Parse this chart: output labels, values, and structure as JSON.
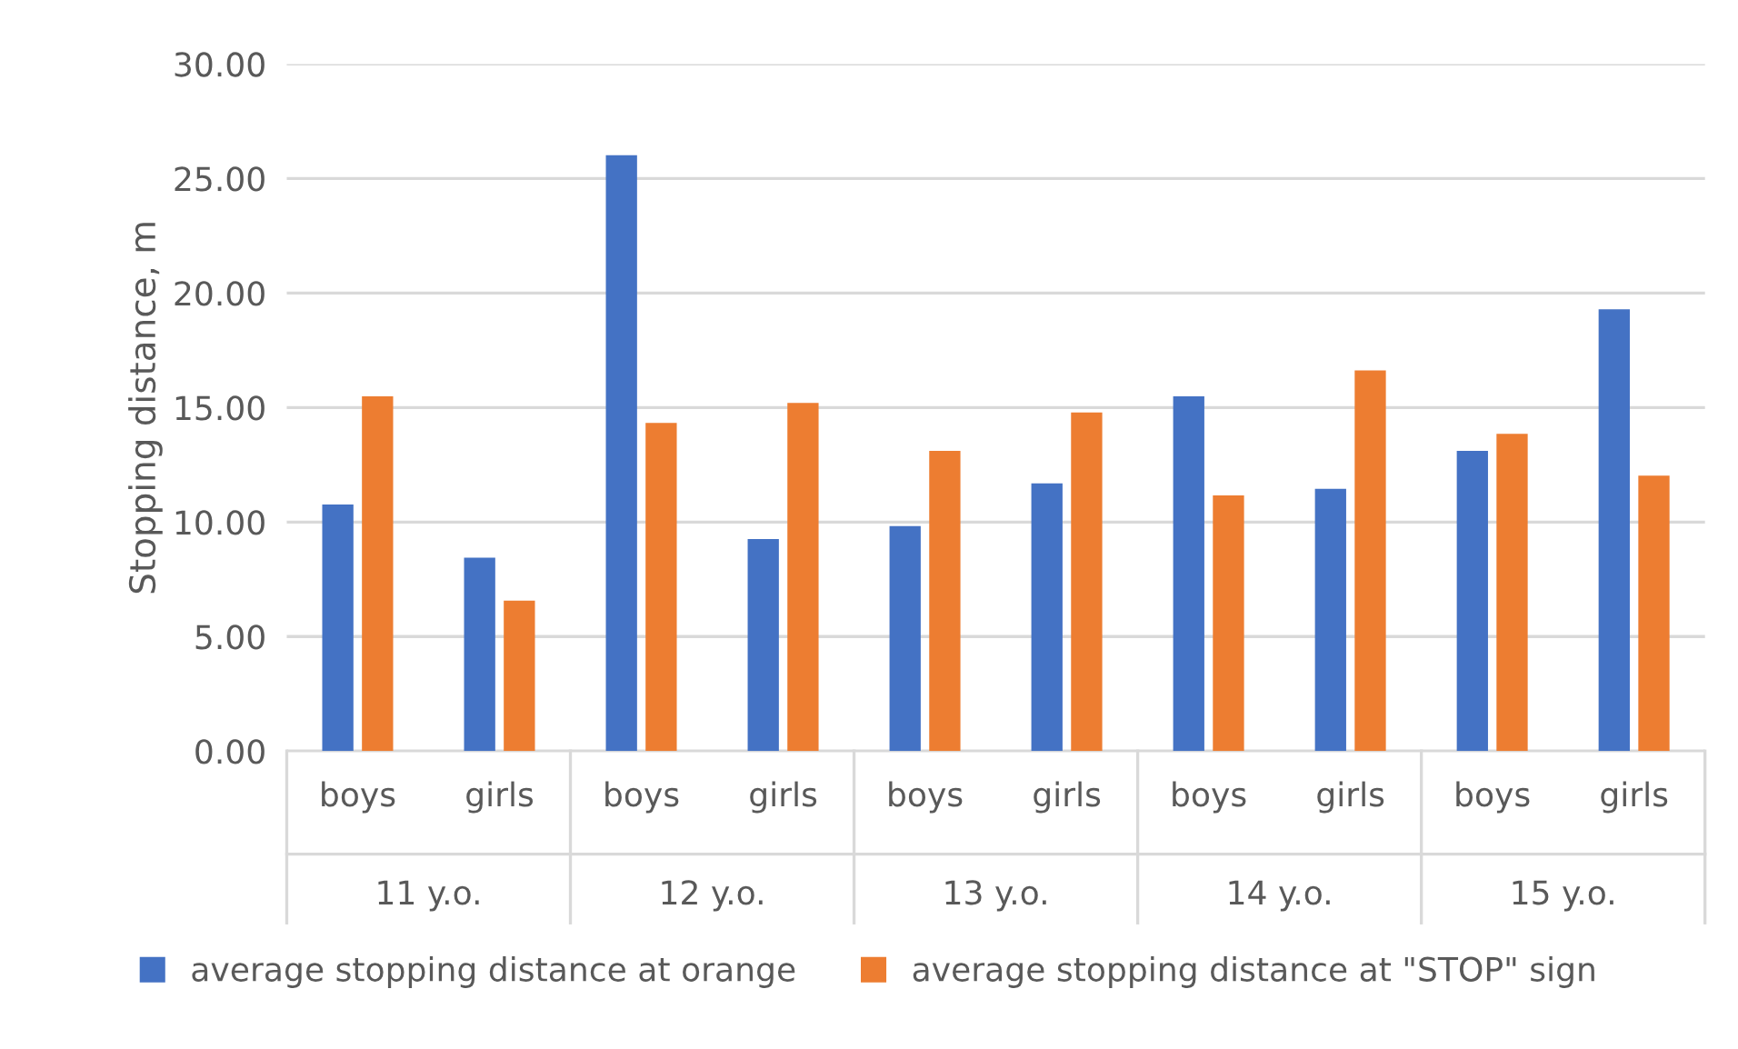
{
  "chart_data": {
    "type": "bar",
    "ylabel": "Stopping distance, m",
    "categories": [
      "boys",
      "girls",
      "boys",
      "girls",
      "boys",
      "girls",
      "boys",
      "girls",
      "boys",
      "girls"
    ],
    "annotations": [
      "11 y.o.",
      "12 y.o.",
      "13 y.o.",
      "14 y.o.",
      "15 y.o."
    ],
    "series": [
      {
        "name": "average stopping distance at orange",
        "color": "#4472c4",
        "values": [
          10.77,
          8.44,
          26.02,
          9.26,
          9.82,
          11.69,
          15.49,
          11.45,
          13.11,
          19.29
        ]
      },
      {
        "name": "average stopping distance at \"STOP\" sign",
        "color": "#ed7d31",
        "values": [
          15.49,
          6.57,
          14.33,
          15.2,
          13.11,
          14.78,
          11.16,
          16.62,
          13.85,
          12.03
        ]
      }
    ],
    "ylim": [
      0,
      30
    ],
    "yticks": [
      {
        "value": 0,
        "label": "0.00"
      },
      {
        "value": 5,
        "label": "5.00"
      },
      {
        "value": 10,
        "label": "10.00"
      },
      {
        "value": 15,
        "label": "15.00"
      },
      {
        "value": 20,
        "label": "20.00"
      },
      {
        "value": 25,
        "label": "25.00"
      },
      {
        "value": 30,
        "label": "30.00"
      }
    ],
    "grid": "y",
    "legend": "bottom"
  }
}
